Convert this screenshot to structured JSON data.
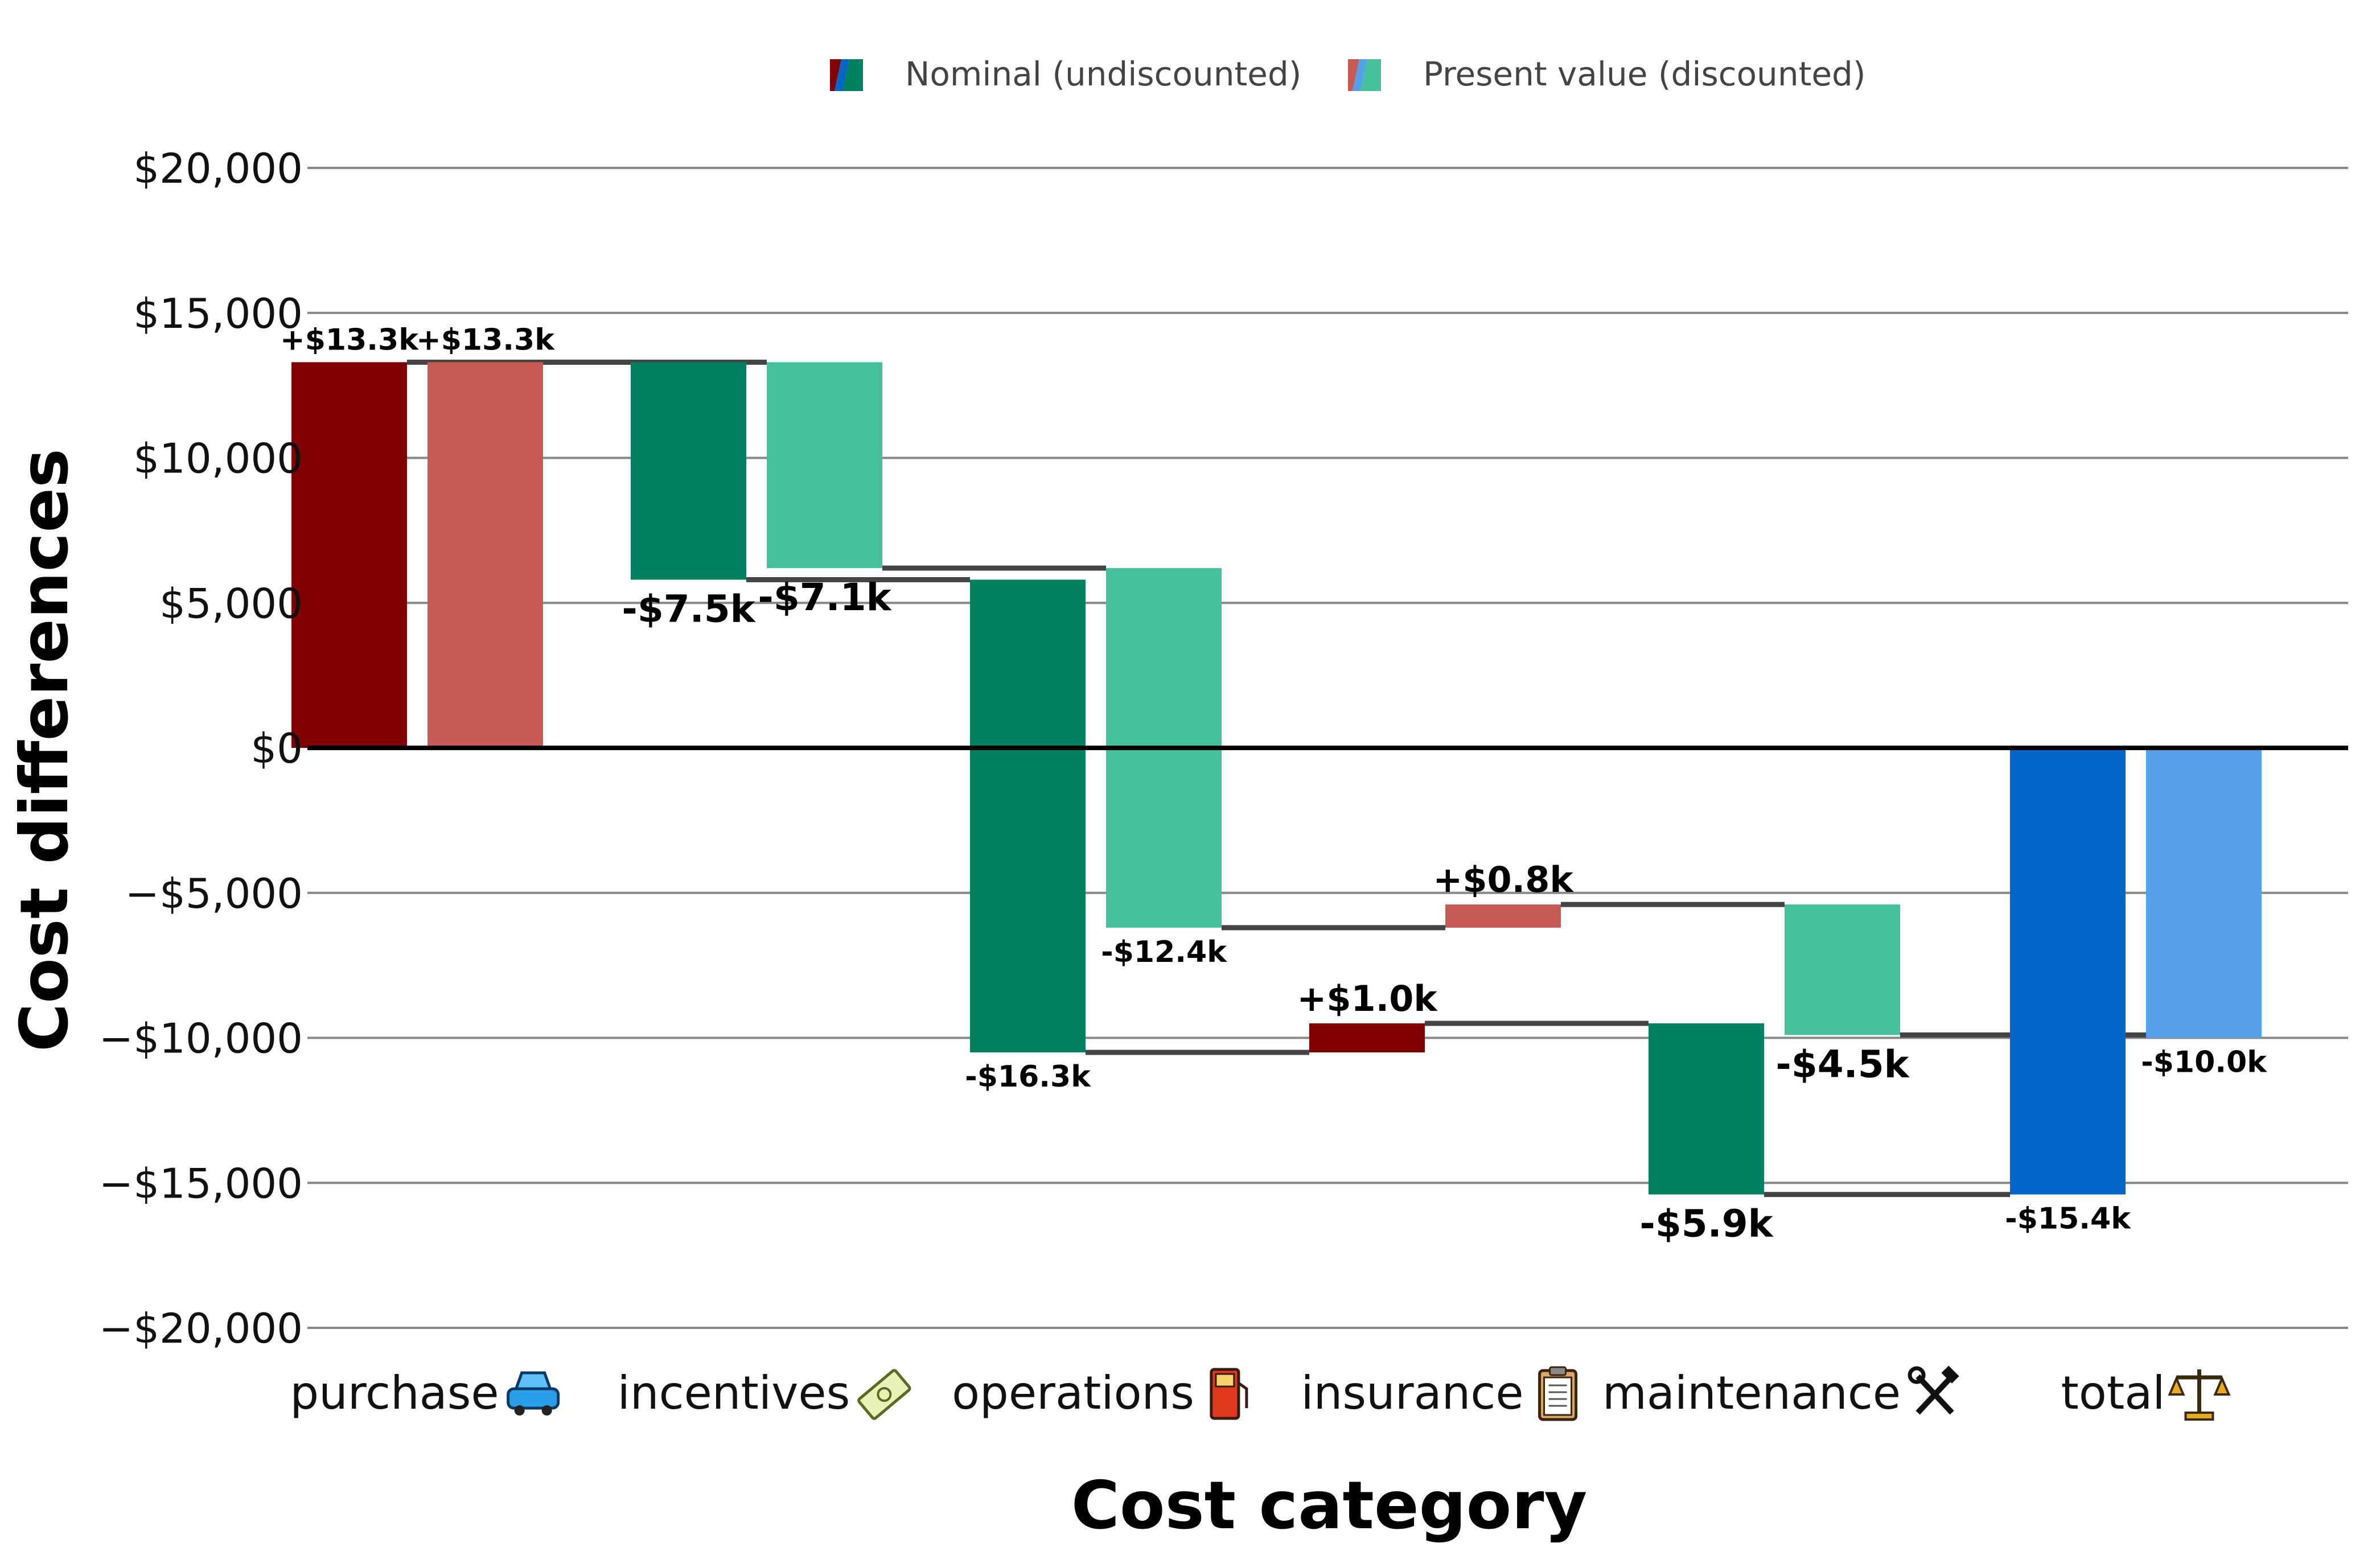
{
  "chart_data": {
    "type": "bar",
    "subtype": "waterfall",
    "title": "",
    "xlabel": "Cost category",
    "ylabel": "Cost differences",
    "ylim": [
      -20000,
      20000
    ],
    "yticks": [
      20000,
      15000,
      10000,
      5000,
      0,
      -5000,
      -10000,
      -15000,
      -20000
    ],
    "ytick_labels": [
      "$20,000",
      "$15,000",
      "$10,000",
      "$5,000",
      "$0",
      "−$5,000",
      "−$10,000",
      "−$15,000",
      "−$20,000"
    ],
    "grid": true,
    "legend_position": "top",
    "categories": [
      "purchase 🚙",
      "incentives 💸",
      "operations ⛽",
      "insurance 📋",
      "maintenance 🛠",
      "total ⚖️"
    ],
    "category_names": [
      "purchase",
      "incentives",
      "operations",
      "insurance",
      "maintenance",
      "total"
    ],
    "category_icons": [
      "car-icon",
      "money-icon",
      "fuel-pump-icon",
      "clipboard-icon",
      "tools-icon",
      "scales-icon"
    ],
    "series": [
      {
        "name": "Nominal (undiscounted)",
        "values": [
          13300,
          -7500,
          -16300,
          1000,
          -5900,
          -15400
        ],
        "labels": [
          "+$13.3k",
          "-$7.5k",
          "-$16.3k",
          "+$1.0k",
          "-$5.9k",
          "-$15.4k"
        ],
        "label_sizes": [
          52,
          66,
          52,
          62,
          66,
          52
        ],
        "increase_color": "#800000",
        "decrease_color": "#008060",
        "total_color": "#0066c8"
      },
      {
        "name": "Present value (discounted)",
        "values": [
          13300,
          -7100,
          -12400,
          800,
          -4500,
          -10000
        ],
        "labels": [
          "+$13.3k",
          "-$7.1k",
          "-$12.4k",
          "+$0.8k",
          "-$4.5k",
          "-$10.0k"
        ],
        "label_sizes": [
          52,
          66,
          52,
          62,
          66,
          52
        ],
        "increase_color": "#c85a55",
        "decrease_color": "#44c09c",
        "total_color": "#56a0e8"
      }
    ],
    "connector_color": "#444444"
  }
}
